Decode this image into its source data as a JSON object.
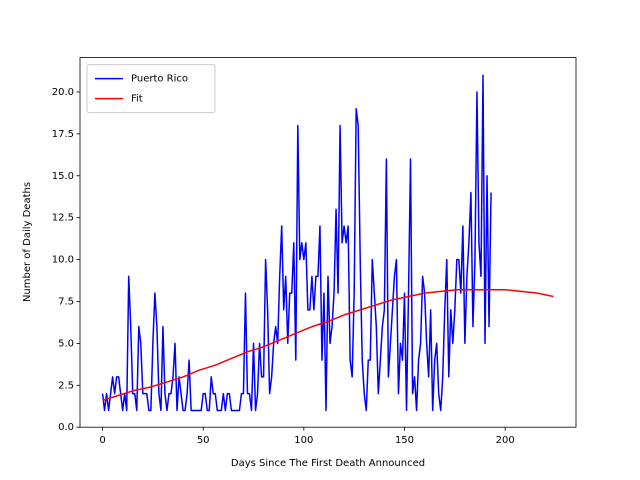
{
  "chart_data": {
    "type": "line",
    "xlabel": "Days Since The First Death Announced",
    "ylabel": "Number of Daily Deaths",
    "xlim": [
      -11.2,
      235.2
    ],
    "ylim": [
      0,
      22.05
    ],
    "xticks": [
      0,
      50,
      100,
      150,
      200
    ],
    "yticks": [
      {
        "value": 0,
        "label": "0.0"
      },
      {
        "value": 2.5,
        "label": "2.5"
      },
      {
        "value": 5,
        "label": "5.0"
      },
      {
        "value": 7.5,
        "label": "7.5"
      },
      {
        "value": 10,
        "label": "10.0"
      },
      {
        "value": 12.5,
        "label": "12.5"
      },
      {
        "value": 15,
        "label": "15.0"
      },
      {
        "value": 17.5,
        "label": "17.5"
      },
      {
        "value": 20,
        "label": "20.0"
      }
    ],
    "legend": "upper left",
    "grid": false,
    "series": [
      {
        "name": "Puerto Rico",
        "color": "#0000ff",
        "x": [
          0,
          1,
          2,
          3,
          4,
          5,
          6,
          7,
          8,
          9,
          10,
          11,
          12,
          13,
          14,
          15,
          16,
          17,
          18,
          19,
          20,
          21,
          22,
          23,
          24,
          25,
          26,
          27,
          28,
          29,
          30,
          31,
          32,
          33,
          34,
          35,
          36,
          37,
          38,
          39,
          40,
          41,
          42,
          43,
          44,
          45,
          46,
          47,
          48,
          49,
          50,
          51,
          52,
          53,
          54,
          55,
          56,
          57,
          58,
          59,
          60,
          61,
          62,
          63,
          64,
          65,
          66,
          67,
          68,
          69,
          70,
          71,
          72,
          73,
          74,
          75,
          76,
          77,
          78,
          79,
          80,
          81,
          82,
          83,
          84,
          85,
          86,
          87,
          88,
          89,
          90,
          91,
          92,
          93,
          94,
          95,
          96,
          97,
          98,
          99,
          100,
          101,
          102,
          103,
          104,
          105,
          106,
          107,
          108,
          109,
          110,
          111,
          112,
          113,
          114,
          115,
          116,
          117,
          118,
          119,
          120,
          121,
          122,
          123,
          124,
          125,
          126,
          127,
          128,
          129,
          130,
          131,
          132,
          133,
          134,
          135,
          136,
          137,
          138,
          139,
          140,
          141,
          142,
          143,
          144,
          145,
          146,
          147,
          148,
          149,
          150,
          151,
          152,
          153,
          154,
          155,
          156,
          157,
          158,
          159,
          160,
          161,
          162,
          163,
          164,
          165,
          166,
          167,
          168,
          169,
          170,
          171,
          172,
          173,
          174,
          175,
          176,
          177,
          178,
          179,
          180,
          181,
          182,
          183,
          184,
          185,
          186,
          187,
          188,
          189,
          190,
          191,
          192,
          193
        ],
        "values": [
          2,
          1,
          2,
          1,
          2,
          3,
          2,
          3,
          3,
          2,
          1,
          2,
          1,
          9,
          6,
          2,
          2,
          1,
          6,
          5,
          2,
          2,
          2,
          1,
          1,
          5,
          8,
          6,
          2,
          1,
          6,
          2,
          1,
          2,
          2,
          3,
          5,
          1,
          3,
          2,
          1,
          1,
          2,
          4,
          1,
          1,
          1,
          1,
          1,
          1,
          2,
          2,
          1,
          1,
          3,
          2,
          2,
          1,
          1,
          1,
          2,
          1,
          2,
          2,
          1,
          1,
          1,
          1,
          1,
          2,
          2,
          8,
          2,
          2,
          1,
          5,
          1,
          2,
          5,
          3,
          3,
          10,
          7,
          2,
          3,
          5,
          6,
          5,
          9,
          12,
          7,
          9,
          5,
          8,
          8,
          11,
          4,
          18,
          10,
          11,
          10,
          11,
          7,
          7,
          9,
          7,
          9,
          9,
          12,
          4,
          8,
          1,
          9,
          5,
          6,
          8,
          13,
          8,
          18,
          11,
          12,
          11,
          12,
          4,
          3,
          8,
          19,
          18,
          10,
          4,
          2,
          1,
          4,
          4,
          10,
          8,
          6,
          2,
          4,
          6,
          7,
          16,
          3,
          5,
          7,
          9,
          10,
          2,
          5,
          4,
          8,
          1,
          8,
          16,
          2,
          3,
          1,
          4,
          5,
          9,
          8,
          5,
          3,
          7,
          1,
          4,
          5,
          2,
          1,
          3,
          7,
          10,
          3,
          7,
          5,
          7,
          10,
          10,
          8,
          12,
          5,
          9,
          11,
          14,
          6,
          10,
          20,
          11,
          9,
          21,
          5,
          15,
          6,
          14
        ]
      },
      {
        "name": "Fit",
        "color": "#ff0000",
        "x": [
          0,
          8,
          16,
          24,
          32,
          40,
          48,
          56,
          64,
          72,
          80,
          88,
          96,
          104,
          112,
          120,
          128,
          136,
          144,
          152,
          160,
          168,
          176,
          184,
          192,
          200,
          208,
          216,
          224
        ],
        "values": [
          1.6,
          1.9,
          2.2,
          2.4,
          2.7,
          3.0,
          3.4,
          3.7,
          4.1,
          4.5,
          4.8,
          5.2,
          5.6,
          6.0,
          6.3,
          6.7,
          7.0,
          7.3,
          7.6,
          7.8,
          8.0,
          8.1,
          8.2,
          8.2,
          8.2,
          8.2,
          8.1,
          8.0,
          7.8
        ]
      }
    ]
  }
}
